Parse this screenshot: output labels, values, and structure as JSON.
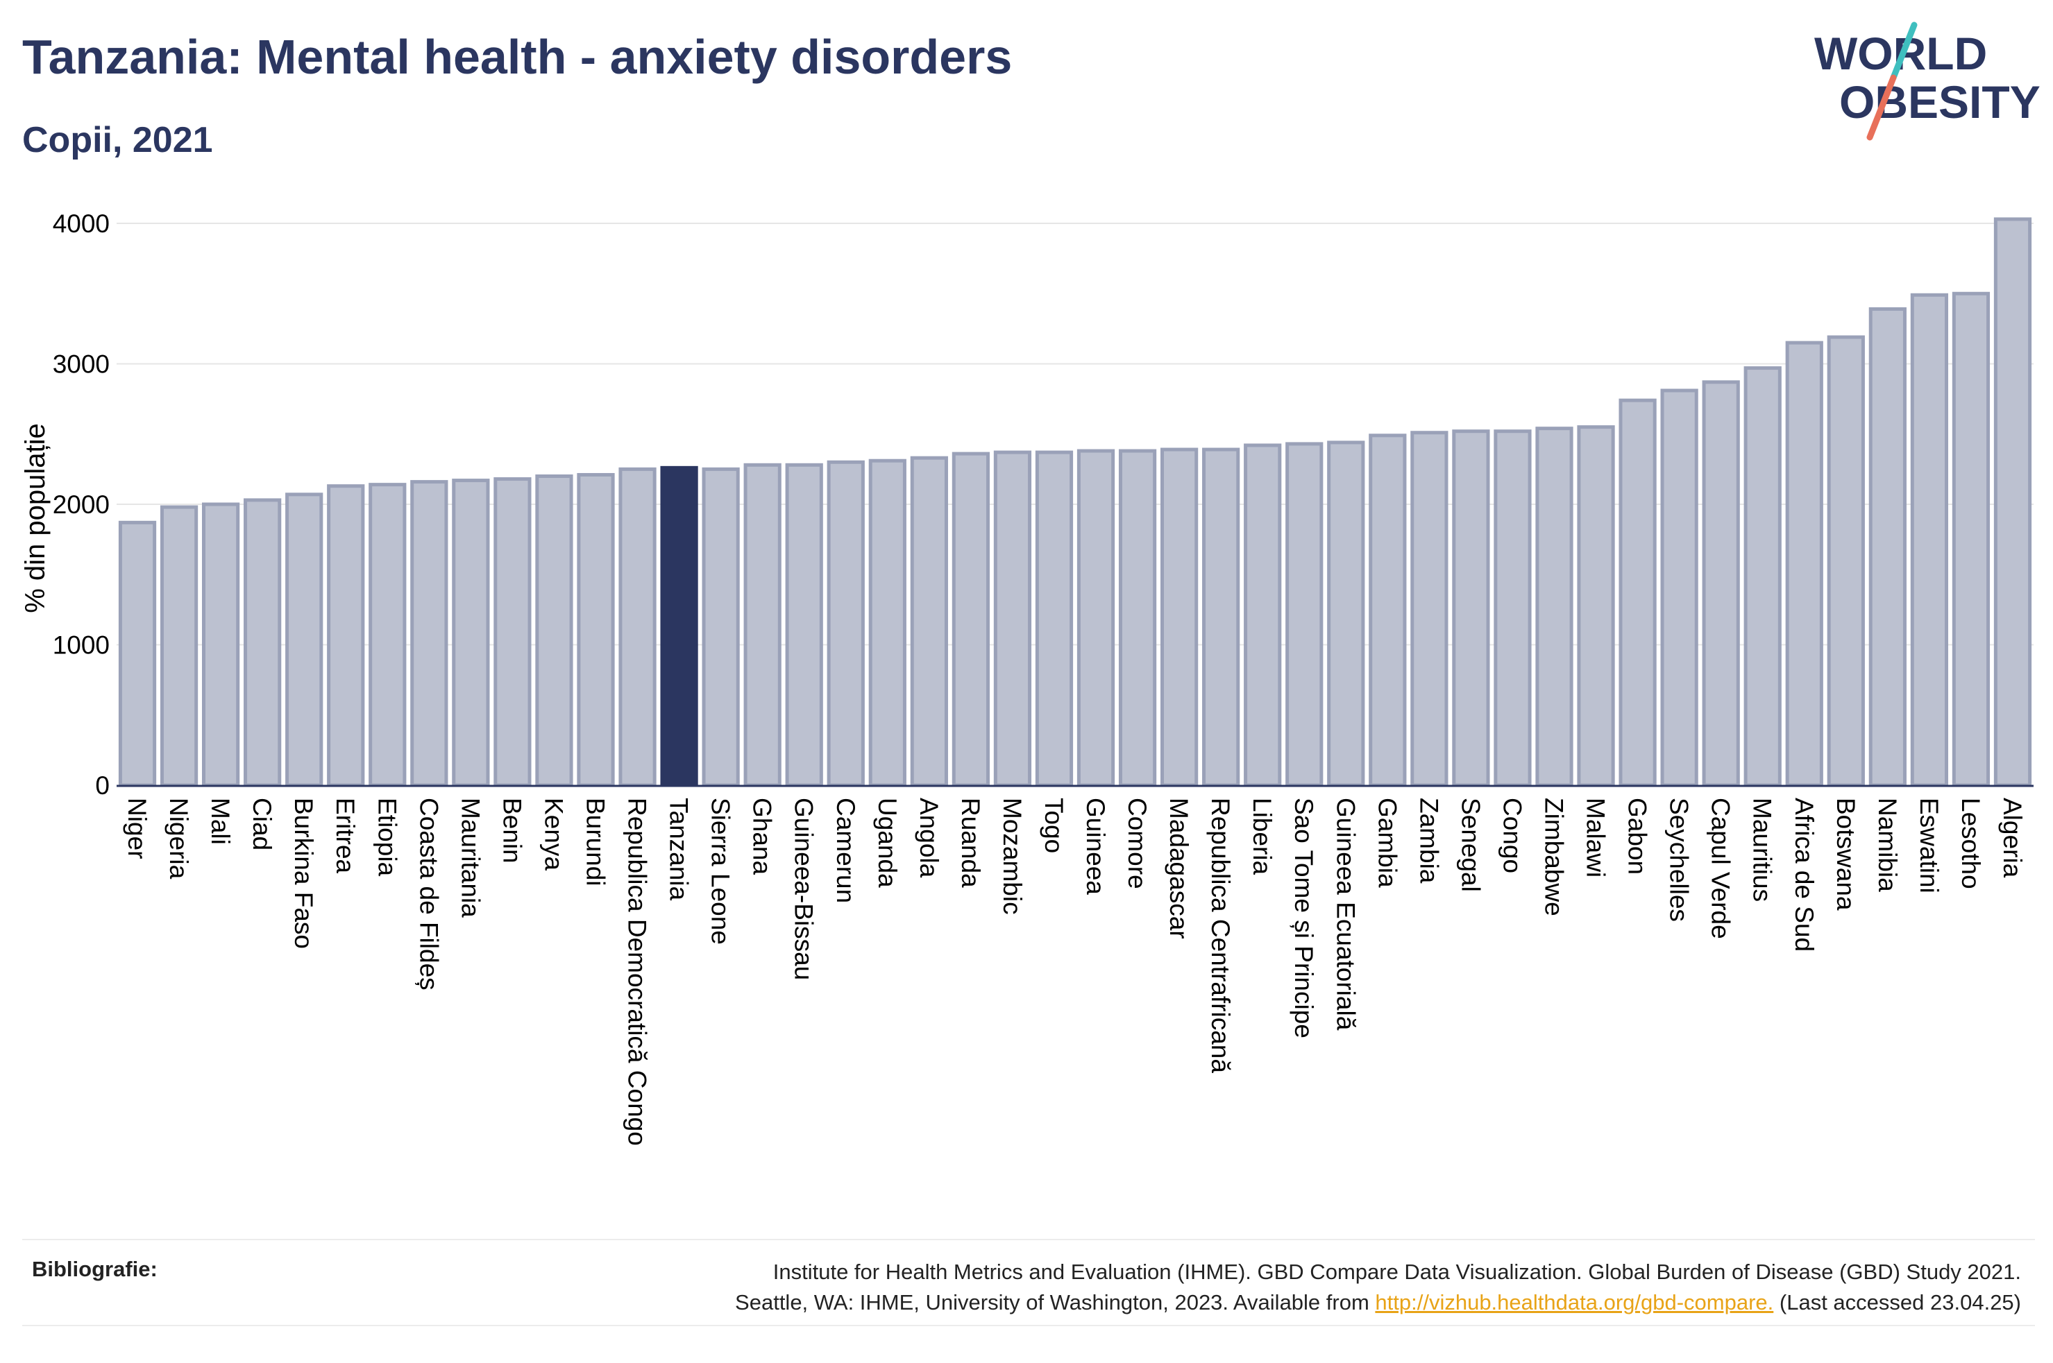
{
  "header": {
    "title": "Tanzania: Mental health - anxiety disorders",
    "subtitle": "Copii, 2021"
  },
  "logo": {
    "line1": "WORLD",
    "line2": "OBESITY"
  },
  "colors": {
    "bar": "#bcc1d0",
    "bar_stroke": "#9aa1b8",
    "highlight": "#2b3660",
    "grid": "#e6e6e6",
    "axis": "#2b3660",
    "accent_teal": "#3fbfbf",
    "accent_coral": "#e8705a"
  },
  "chart_data": {
    "type": "bar",
    "ylabel": "% din populație",
    "ylim": [
      0,
      4100
    ],
    "yticks": [
      0,
      1000,
      2000,
      3000,
      4000
    ],
    "highlight": "Tanzania",
    "grid": true,
    "categories": [
      "Niger",
      "Nigeria",
      "Mali",
      "Ciad",
      "Burkina Faso",
      "Eritrea",
      "Etiopia",
      "Coasta de Fildeș",
      "Mauritania",
      "Benin",
      "Kenya",
      "Burundi",
      "Republica Democratică Congo",
      "Tanzania",
      "Sierra Leone",
      "Ghana",
      "Guineea-Bissau",
      "Camerun",
      "Uganda",
      "Angola",
      "Ruanda",
      "Mozambic",
      "Togo",
      "Guineea",
      "Comore",
      "Madagascar",
      "Republica Centrafricană",
      "Liberia",
      "Sao Tome și Principe",
      "Guineea Ecuatorială",
      "Gambia",
      "Zambia",
      "Senegal",
      "Congo",
      "Zimbabwe",
      "Malawi",
      "Gabon",
      "Seychelles",
      "Capul Verde",
      "Mauritius",
      "Africa de Sud",
      "Botswana",
      "Namibia",
      "Eswatini",
      "Lesotho",
      "Algeria"
    ],
    "values": [
      1870,
      1980,
      2000,
      2030,
      2070,
      2130,
      2140,
      2160,
      2170,
      2180,
      2200,
      2210,
      2250,
      2260,
      2250,
      2280,
      2280,
      2300,
      2310,
      2330,
      2360,
      2370,
      2370,
      2380,
      2380,
      2390,
      2390,
      2420,
      2430,
      2440,
      2490,
      2510,
      2520,
      2520,
      2540,
      2550,
      2740,
      2810,
      2870,
      2970,
      3150,
      3190,
      3390,
      3490,
      3500,
      4030
    ]
  },
  "footer": {
    "label": "Bibliografie:",
    "line1": "Institute for Health Metrics and Evaluation (IHME). GBD Compare Data Visualization. Global Burden of Disease (GBD) Study 2021.",
    "line2_pre": "Seattle, WA: IHME, University of Washington, 2023. Available from ",
    "link": "http://vizhub.healthdata.org/gbd-compare.",
    "line2_post": " (Last accessed 23.04.25)"
  }
}
